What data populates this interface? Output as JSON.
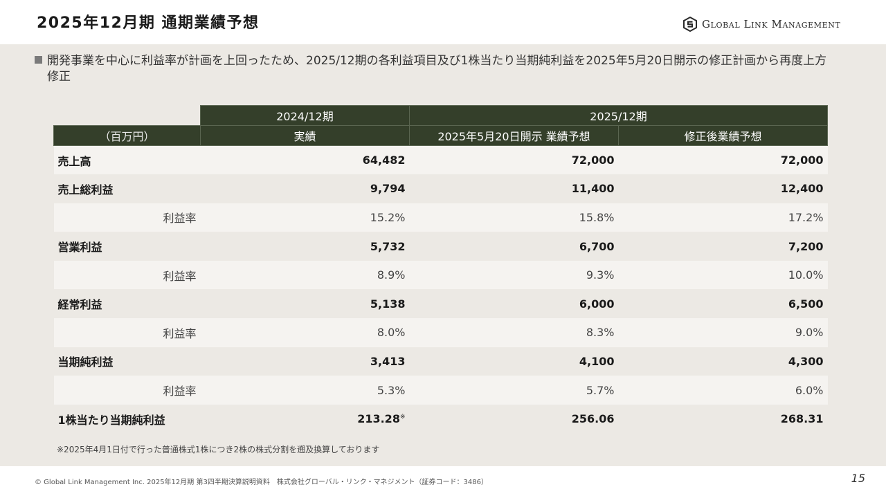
{
  "header": {
    "title": "2025年12月期 通期業績予想",
    "logo_text": "Global Link Management"
  },
  "lead": {
    "text": "開発事業を中心に利益率が計画を上回ったため、2025/12期の各利益項目及び1株当たり当期純利益を2025年5月20日開示の修正計画から再度上方修正"
  },
  "table": {
    "period_headers": [
      "2024/12期",
      "2025/12期"
    ],
    "unit_label": "（百万円）",
    "column_headers": [
      "実績",
      "2025年5月20日開示 業績予想",
      "修正後業績予想"
    ],
    "rows": [
      {
        "label": "売上高",
        "values": [
          "64,482",
          "72,000",
          "72,000"
        ]
      },
      {
        "label": "売上総利益",
        "values": [
          "9,794",
          "11,400",
          "12,400"
        ]
      },
      {
        "label": "利益率",
        "values": [
          "15.2%",
          "15.8%",
          "17.2%"
        ]
      },
      {
        "label": "営業利益",
        "values": [
          "5,732",
          "6,700",
          "7,200"
        ]
      },
      {
        "label": "利益率",
        "values": [
          "8.9%",
          "9.3%",
          "10.0%"
        ]
      },
      {
        "label": "経常利益",
        "values": [
          "5,138",
          "6,000",
          "6,500"
        ]
      },
      {
        "label": "利益率",
        "values": [
          "8.0%",
          "8.3%",
          "9.0%"
        ]
      },
      {
        "label": "当期純利益",
        "values": [
          "3,413",
          "4,100",
          "4,300"
        ]
      },
      {
        "label": "利益率",
        "values": [
          "5.3%",
          "5.7%",
          "6.0%"
        ]
      },
      {
        "label": "1株当たり当期純利益",
        "values": [
          "213.28",
          "256.06",
          "268.31"
        ],
        "footnote_mark": "※"
      }
    ]
  },
  "note": "※2025年4月1日付で行った普通株式1株につき2株の株式分割を遡及換算しております",
  "footer": {
    "copyright": "© Global Link Management Inc. 2025年12月期 第3四半期決算説明資料　株式会社グローバル・リンク・マネジメント（証券コード：3486）",
    "page_number": "15"
  },
  "colors": {
    "header_fill": "#343f2a",
    "content_background": "#ece9e4",
    "row_light": "#f5f3f0"
  }
}
